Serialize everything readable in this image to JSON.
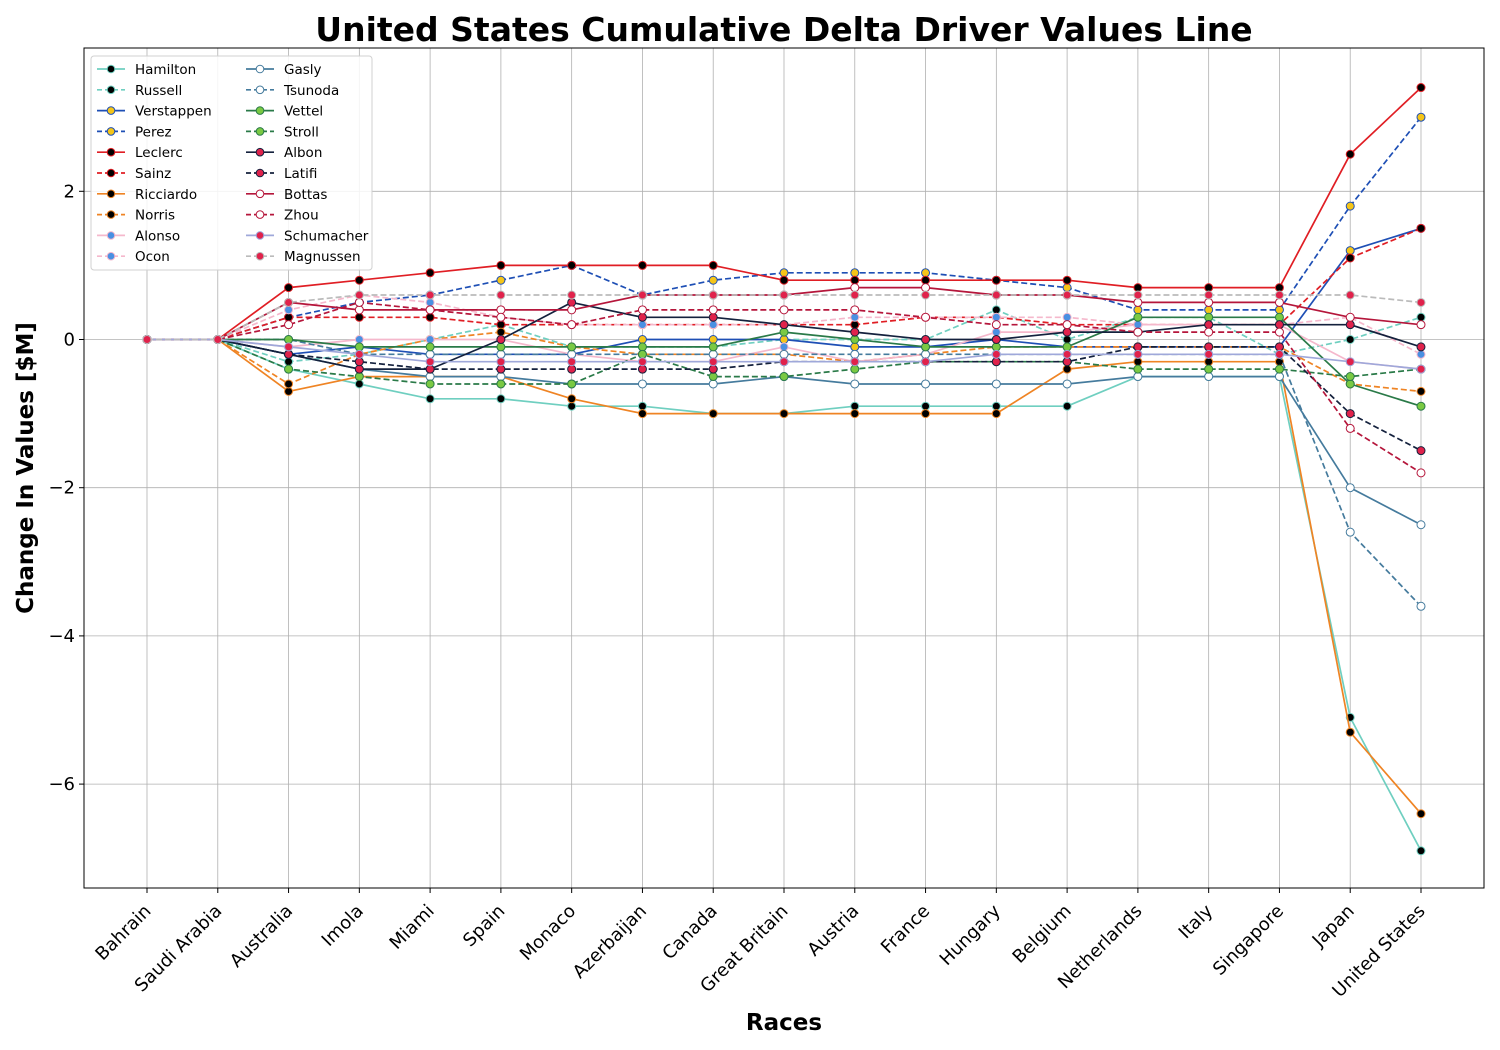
{
  "chart_data": {
    "type": "line",
    "title": "United States Cumulative Delta Driver Values Line",
    "xlabel": "Races",
    "ylabel": "Change In Values [$M]",
    "ylim": [
      -7.2,
      3.9
    ],
    "yticks": [
      -6,
      -4,
      -2,
      0,
      2
    ],
    "ytick_labels": [
      "−6",
      "−4",
      "−2",
      "0",
      "2"
    ],
    "grid": true,
    "legend_position": "top-left",
    "legend_columns": 2,
    "categories": [
      "Bahrain",
      "Saudi Arabia",
      "Australia",
      "Imola",
      "Miami",
      "Spain",
      "Monaco",
      "Azerbaijan",
      "Canada",
      "Great Britain",
      "Austria",
      "France",
      "Hungary",
      "Belgium",
      "Netherlands",
      "Italy",
      "Singapore",
      "Japan",
      "United States"
    ],
    "series": [
      {
        "name": "Hamilton",
        "line": "#6fcfc0",
        "dash": "solid",
        "marker_fill": "#000000",
        "marker_edge": "#6fcfc0",
        "values": [
          0,
          0,
          -0.4,
          -0.6,
          -0.8,
          -0.8,
          -0.9,
          -0.9,
          -1.0,
          -1.0,
          -0.9,
          -0.9,
          -0.9,
          -0.9,
          -0.5,
          -0.5,
          -0.5,
          -5.1,
          -6.9
        ]
      },
      {
        "name": "Russell",
        "line": "#6fcfc0",
        "dash": "dashed",
        "marker_fill": "#000000",
        "marker_edge": "#6fcfc0",
        "values": [
          0,
          0,
          -0.3,
          -0.2,
          0.0,
          0.2,
          -0.1,
          -0.1,
          -0.1,
          0.0,
          0.0,
          0.0,
          0.4,
          0.0,
          0.3,
          0.3,
          -0.2,
          0.0,
          0.3
        ]
      },
      {
        "name": "Verstappen",
        "line": "#1e4fb5",
        "dash": "solid",
        "marker_fill": "#f5c518",
        "marker_edge": "#1e4fb5",
        "values": [
          0,
          0,
          -0.2,
          -0.1,
          -0.2,
          -0.2,
          -0.2,
          0.0,
          0.0,
          0.0,
          -0.1,
          -0.1,
          0.0,
          -0.1,
          -0.1,
          -0.1,
          -0.1,
          1.2,
          1.5
        ]
      },
      {
        "name": "Perez",
        "line": "#1e4fb5",
        "dash": "dashed",
        "marker_fill": "#f5c518",
        "marker_edge": "#1e4fb5",
        "values": [
          0,
          0,
          0.3,
          0.5,
          0.6,
          0.8,
          1.0,
          0.6,
          0.8,
          0.9,
          0.9,
          0.9,
          0.8,
          0.7,
          0.4,
          0.4,
          0.4,
          1.8,
          3.0
        ]
      },
      {
        "name": "Leclerc",
        "line": "#e01e24",
        "dash": "solid",
        "marker_fill": "#000000",
        "marker_edge": "#e01e24",
        "values": [
          0,
          0,
          0.7,
          0.8,
          0.9,
          1.0,
          1.0,
          1.0,
          1.0,
          0.8,
          0.8,
          0.8,
          0.8,
          0.8,
          0.7,
          0.7,
          0.7,
          2.5,
          3.4
        ]
      },
      {
        "name": "Sainz",
        "line": "#e01e24",
        "dash": "dashed",
        "marker_fill": "#000000",
        "marker_edge": "#e01e24",
        "values": [
          0,
          0,
          0.3,
          0.3,
          0.3,
          0.2,
          0.2,
          0.2,
          0.2,
          0.2,
          0.2,
          0.3,
          0.3,
          0.2,
          0.2,
          0.2,
          0.2,
          1.1,
          1.5
        ]
      },
      {
        "name": "Ricciardo",
        "line": "#ef8424",
        "dash": "solid",
        "marker_fill": "#000000",
        "marker_edge": "#ef8424",
        "values": [
          0,
          0,
          -0.7,
          -0.5,
          -0.5,
          -0.5,
          -0.8,
          -1.0,
          -1.0,
          -1.0,
          -1.0,
          -1.0,
          -1.0,
          -0.4,
          -0.3,
          -0.3,
          -0.3,
          -5.3,
          -6.4
        ]
      },
      {
        "name": "Norris",
        "line": "#ef8424",
        "dash": "dashed",
        "marker_fill": "#000000",
        "marker_edge": "#ef8424",
        "values": [
          0,
          0,
          -0.6,
          -0.2,
          0.0,
          0.1,
          -0.1,
          -0.2,
          -0.2,
          -0.2,
          -0.3,
          -0.2,
          -0.1,
          -0.1,
          -0.1,
          -0.1,
          -0.1,
          -0.6,
          -0.7
        ]
      },
      {
        "name": "Alonso",
        "line": "#f5b8cc",
        "dash": "solid",
        "marker_fill": "#4a90e2",
        "marker_edge": "#f5b8cc",
        "values": [
          0,
          0,
          -0.1,
          0.0,
          0.0,
          0.0,
          -0.2,
          -0.3,
          -0.3,
          -0.1,
          -0.3,
          -0.2,
          0.1,
          0.1,
          0.2,
          0.2,
          0.2,
          -0.3,
          -0.4
        ]
      },
      {
        "name": "Ocon",
        "line": "#f5b8cc",
        "dash": "dashed",
        "marker_fill": "#4a90e2",
        "marker_edge": "#f5b8cc",
        "values": [
          0,
          0,
          0.4,
          0.6,
          0.5,
          0.3,
          0.2,
          0.2,
          0.2,
          0.2,
          0.3,
          0.3,
          0.3,
          0.3,
          0.2,
          0.2,
          0.2,
          0.3,
          -0.2
        ]
      },
      {
        "name": "Gasly",
        "line": "#457b9d",
        "dash": "solid",
        "marker_fill": "#ffffff",
        "marker_edge": "#457b9d",
        "values": [
          0,
          0,
          -0.2,
          -0.4,
          -0.5,
          -0.5,
          -0.6,
          -0.6,
          -0.6,
          -0.5,
          -0.6,
          -0.6,
          -0.6,
          -0.6,
          -0.5,
          -0.5,
          -0.5,
          -2.0,
          -2.5
        ]
      },
      {
        "name": "Tsunoda",
        "line": "#457b9d",
        "dash": "dashed",
        "marker_fill": "#ffffff",
        "marker_edge": "#457b9d",
        "values": [
          0,
          0,
          0.0,
          -0.2,
          -0.2,
          -0.2,
          -0.2,
          -0.2,
          -0.2,
          -0.2,
          -0.2,
          -0.2,
          -0.2,
          -0.2,
          -0.2,
          -0.2,
          -0.2,
          -2.6,
          -3.6
        ]
      },
      {
        "name": "Vettel",
        "line": "#2a7a48",
        "dash": "solid",
        "marker_fill": "#7ac943",
        "marker_edge": "#2a7a48",
        "values": [
          0,
          0,
          0.0,
          -0.1,
          -0.1,
          -0.1,
          -0.1,
          -0.1,
          -0.1,
          0.1,
          0.0,
          -0.1,
          -0.1,
          -0.1,
          0.3,
          0.3,
          0.3,
          -0.6,
          -0.9
        ]
      },
      {
        "name": "Stroll",
        "line": "#2a7a48",
        "dash": "dashed",
        "marker_fill": "#7ac943",
        "marker_edge": "#2a7a48",
        "values": [
          0,
          0,
          -0.4,
          -0.5,
          -0.6,
          -0.6,
          -0.6,
          -0.2,
          -0.5,
          -0.5,
          -0.4,
          -0.3,
          -0.3,
          -0.3,
          -0.4,
          -0.4,
          -0.4,
          -0.5,
          -0.4
        ]
      },
      {
        "name": "Albon",
        "line": "#14213d",
        "dash": "solid",
        "marker_fill": "#e0224b",
        "marker_edge": "#14213d",
        "values": [
          0,
          0,
          -0.2,
          -0.4,
          -0.4,
          0.0,
          0.5,
          0.3,
          0.3,
          0.2,
          0.1,
          0.0,
          0.0,
          0.1,
          0.1,
          0.2,
          0.2,
          0.2,
          -0.1
        ]
      },
      {
        "name": "Latifi",
        "line": "#14213d",
        "dash": "dashed",
        "marker_fill": "#e0224b",
        "marker_edge": "#14213d",
        "values": [
          0,
          0,
          -0.2,
          -0.3,
          -0.4,
          -0.4,
          -0.4,
          -0.4,
          -0.4,
          -0.3,
          -0.3,
          -0.3,
          -0.3,
          -0.3,
          -0.1,
          -0.1,
          -0.1,
          -1.0,
          -1.5
        ]
      },
      {
        "name": "Bottas",
        "line": "#b5163b",
        "dash": "solid",
        "marker_fill": "#ffffff",
        "marker_edge": "#b5163b",
        "values": [
          0,
          0,
          0.5,
          0.4,
          0.4,
          0.4,
          0.4,
          0.6,
          0.6,
          0.6,
          0.7,
          0.7,
          0.6,
          0.6,
          0.5,
          0.5,
          0.5,
          0.3,
          0.2
        ]
      },
      {
        "name": "Zhou",
        "line": "#b5163b",
        "dash": "dashed",
        "marker_fill": "#ffffff",
        "marker_edge": "#b5163b",
        "values": [
          0,
          0,
          0.2,
          0.5,
          0.4,
          0.3,
          0.2,
          0.4,
          0.4,
          0.4,
          0.4,
          0.3,
          0.2,
          0.2,
          0.1,
          0.1,
          0.1,
          -1.2,
          -1.8
        ]
      },
      {
        "name": "Schumacher",
        "line": "#9fa8da",
        "dash": "solid",
        "marker_fill": "#e0224b",
        "marker_edge": "#9fa8da",
        "values": [
          0,
          0,
          -0.1,
          -0.2,
          -0.3,
          -0.3,
          -0.3,
          -0.3,
          -0.3,
          -0.3,
          -0.3,
          -0.3,
          -0.2,
          -0.2,
          -0.2,
          -0.2,
          -0.2,
          -0.3,
          -0.4
        ]
      },
      {
        "name": "Magnussen",
        "line": "#bbbbbb",
        "dash": "dashed",
        "marker_fill": "#e0224b",
        "marker_edge": "#bbbbbb",
        "values": [
          0,
          0,
          0.5,
          0.6,
          0.6,
          0.6,
          0.6,
          0.6,
          0.6,
          0.6,
          0.6,
          0.6,
          0.6,
          0.6,
          0.6,
          0.6,
          0.6,
          0.6,
          0.5
        ]
      }
    ]
  }
}
